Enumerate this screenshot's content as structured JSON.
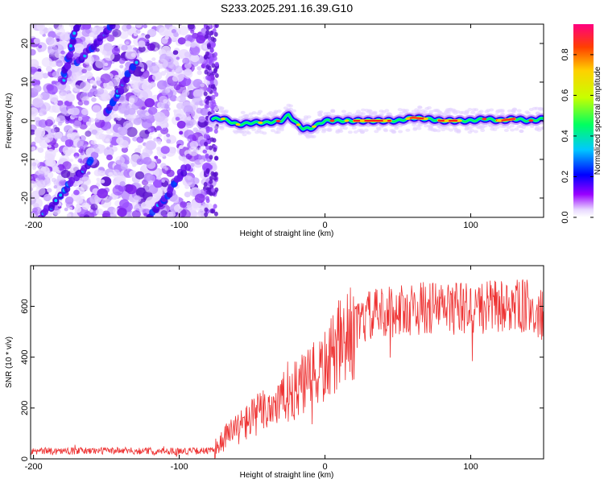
{
  "title": "S233.2025.291.16.39.G10",
  "chart_data": [
    {
      "type": "heatmap",
      "xlabel": "Height of straight line (km)",
      "ylabel": "Frequency (Hz)",
      "xlim": [
        -202,
        150
      ],
      "ylim": [
        -25,
        25
      ],
      "xticks": [
        -200,
        -100,
        0,
        100
      ],
      "yticks": [
        -20,
        -10,
        0,
        10,
        20
      ],
      "colorbar": {
        "label": "Normalized spectral amplitude",
        "range": [
          0,
          0.95
        ],
        "ticks": [
          0.0,
          0.2,
          0.4,
          0.6,
          0.8
        ]
      },
      "dominant_frequency_trace": {
        "x": [
          -75,
          -70,
          -60,
          -50,
          -40,
          -30,
          -25,
          -20,
          -15,
          -10,
          -5,
          0,
          10,
          20,
          30,
          40,
          50,
          60,
          70,
          80,
          90,
          100,
          110,
          120,
          130,
          140,
          150
        ],
        "y": [
          0.5,
          0.5,
          -1,
          -0.5,
          -0.5,
          0,
          1.5,
          -0.5,
          -2,
          -2,
          -1,
          0,
          0,
          0,
          0,
          0,
          0,
          0.8,
          0.5,
          0,
          0,
          0,
          0.5,
          0,
          0.5,
          0,
          0.5
        ]
      },
      "noise_streaks": [
        {
          "x": [
            -195,
            -160
          ],
          "y": [
            -25,
            -10
          ]
        },
        {
          "x": [
            -150,
            -130
          ],
          "y": [
            2,
            15
          ]
        },
        {
          "x": [
            -120,
            -95
          ],
          "y": [
            -25,
            -12
          ]
        },
        {
          "x": [
            -180,
            -170
          ],
          "y": [
            10,
            25
          ]
        },
        {
          "x": [
            -170,
            -145
          ],
          "y": [
            15,
            25
          ]
        }
      ]
    },
    {
      "type": "line",
      "xlabel": "Height of straight line (km)",
      "ylabel": "SNR (10 * v/v)",
      "xlim": [
        -202,
        150
      ],
      "ylim": [
        0,
        760
      ],
      "xticks": [
        -200,
        -100,
        0,
        100
      ],
      "yticks": [
        0,
        200,
        400,
        600
      ],
      "series": [
        {
          "name": "SNR",
          "color": "#ee3333",
          "envelope_x": [
            -202,
            -150,
            -100,
            -76,
            -70,
            -60,
            -50,
            -40,
            -30,
            -20,
            -10,
            0,
            10,
            20,
            30,
            40,
            60,
            80,
            100,
            120,
            140,
            150
          ],
          "envelope_y": [
            30,
            32,
            30,
            32,
            80,
            120,
            160,
            200,
            230,
            270,
            310,
            360,
            440,
            510,
            560,
            575,
            590,
            595,
            590,
            600,
            600,
            560
          ]
        }
      ]
    }
  ],
  "colors": {
    "axis": "#000000",
    "snr_line": "#ee3333"
  }
}
